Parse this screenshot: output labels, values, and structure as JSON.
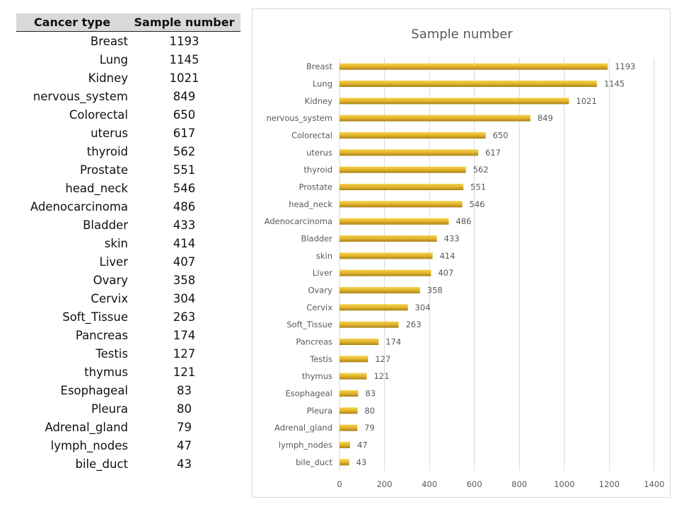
{
  "table": {
    "headers": [
      "Cancer type",
      "Sample number"
    ],
    "rows": [
      [
        "Breast",
        "1193"
      ],
      [
        "Lung",
        "1145"
      ],
      [
        "Kidney",
        "1021"
      ],
      [
        "nervous_system",
        "849"
      ],
      [
        "Colorectal",
        "650"
      ],
      [
        "uterus",
        "617"
      ],
      [
        "thyroid",
        "562"
      ],
      [
        "Prostate",
        "551"
      ],
      [
        "head_neck",
        "546"
      ],
      [
        "Adenocarcinoma",
        "486"
      ],
      [
        "Bladder",
        "433"
      ],
      [
        "skin",
        "414"
      ],
      [
        "Liver",
        "407"
      ],
      [
        "Ovary",
        "358"
      ],
      [
        "Cervix",
        "304"
      ],
      [
        "Soft_Tissue",
        "263"
      ],
      [
        "Pancreas",
        "174"
      ],
      [
        "Testis",
        "127"
      ],
      [
        "thymus",
        "121"
      ],
      [
        "Esophageal",
        "83"
      ],
      [
        "Pleura",
        "80"
      ],
      [
        "Adrenal_gland",
        "79"
      ],
      [
        "lymph_nodes",
        "47"
      ],
      [
        "bile_duct",
        "43"
      ]
    ]
  },
  "chart_data": {
    "type": "bar",
    "orientation": "horizontal",
    "title": "Sample number",
    "categories": [
      "Breast",
      "Lung",
      "Kidney",
      "nervous_system",
      "Colorectal",
      "uterus",
      "thyroid",
      "Prostate",
      "head_neck",
      "Adenocarcinoma",
      "Bladder",
      "skin",
      "Liver",
      "Ovary",
      "Cervix",
      "Soft_Tissue",
      "Pancreas",
      "Testis",
      "thymus",
      "Esophageal",
      "Pleura",
      "Adrenal_gland",
      "lymph_nodes",
      "bile_duct"
    ],
    "values": [
      1193,
      1145,
      1021,
      849,
      650,
      617,
      562,
      551,
      546,
      486,
      433,
      414,
      407,
      358,
      304,
      263,
      174,
      127,
      121,
      83,
      80,
      79,
      47,
      43
    ],
    "xlim": [
      0,
      1400
    ],
    "xticks": [
      0,
      200,
      400,
      600,
      800,
      1000,
      1200,
      1400
    ],
    "xlabel": "",
    "ylabel": "",
    "grid": true,
    "data_labels": true,
    "bar_color": "#e2b42c"
  }
}
